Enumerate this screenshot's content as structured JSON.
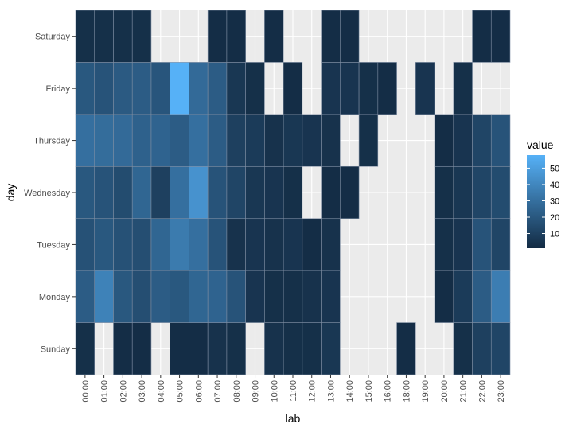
{
  "chart_data": {
    "type": "heatmap",
    "xlabel": "lab",
    "ylabel": "day",
    "x": [
      "00:00",
      "01:00",
      "02:00",
      "03:00",
      "04:00",
      "05:00",
      "06:00",
      "07:00",
      "08:00",
      "09:00",
      "10:00",
      "11:00",
      "12:00",
      "13:00",
      "14:00",
      "15:00",
      "16:00",
      "18:00",
      "19:00",
      "20:00",
      "21:00",
      "22:00",
      "23:00"
    ],
    "y": [
      "Sunday",
      "Monday",
      "Tuesday",
      "Wednesday",
      "Thursday",
      "Friday",
      "Saturday"
    ],
    "values": {
      "Saturday": [
        3,
        3,
        3,
        3,
        null,
        null,
        null,
        2,
        2,
        null,
        2,
        null,
        null,
        2,
        2,
        null,
        null,
        null,
        null,
        null,
        null,
        2,
        2
      ],
      "Friday": [
        20,
        18,
        21,
        22,
        19,
        58,
        28,
        22,
        6,
        3,
        null,
        2,
        null,
        5,
        5,
        3,
        2,
        null,
        5,
        null,
        3,
        null,
        null
      ],
      "Thursday": [
        30,
        29,
        28,
        24,
        25,
        22,
        30,
        22,
        10,
        8,
        4,
        6,
        5,
        4,
        null,
        3,
        null,
        null,
        null,
        2,
        5,
        12,
        18
      ],
      "Wednesday": [
        20,
        18,
        15,
        26,
        10,
        30,
        45,
        18,
        12,
        6,
        5,
        3,
        null,
        2,
        2,
        null,
        null,
        null,
        null,
        3,
        6,
        12,
        15
      ],
      "Tuesday": [
        17,
        20,
        17,
        16,
        26,
        35,
        30,
        18,
        4,
        5,
        4,
        5,
        2,
        4,
        null,
        null,
        null,
        null,
        null,
        3,
        5,
        18,
        12
      ],
      "Monday": [
        22,
        38,
        20,
        16,
        22,
        20,
        26,
        25,
        18,
        5,
        3,
        3,
        4,
        5,
        null,
        null,
        null,
        null,
        null,
        2,
        8,
        22,
        36
      ],
      "Sunday": [
        3,
        null,
        2,
        2,
        null,
        2,
        2,
        4,
        3,
        null,
        4,
        3,
        3,
        6,
        null,
        null,
        null,
        2,
        null,
        null,
        3,
        10,
        12
      ]
    },
    "legend": {
      "title": "value",
      "ticks": [
        10,
        20,
        30,
        40,
        50
      ],
      "range": [
        1,
        58
      ],
      "placement": "right"
    },
    "colors": {
      "low": "#132B43",
      "high": "#56B1F7",
      "panel": "#EBEBEB",
      "grid": "#FFFFFF"
    }
  }
}
